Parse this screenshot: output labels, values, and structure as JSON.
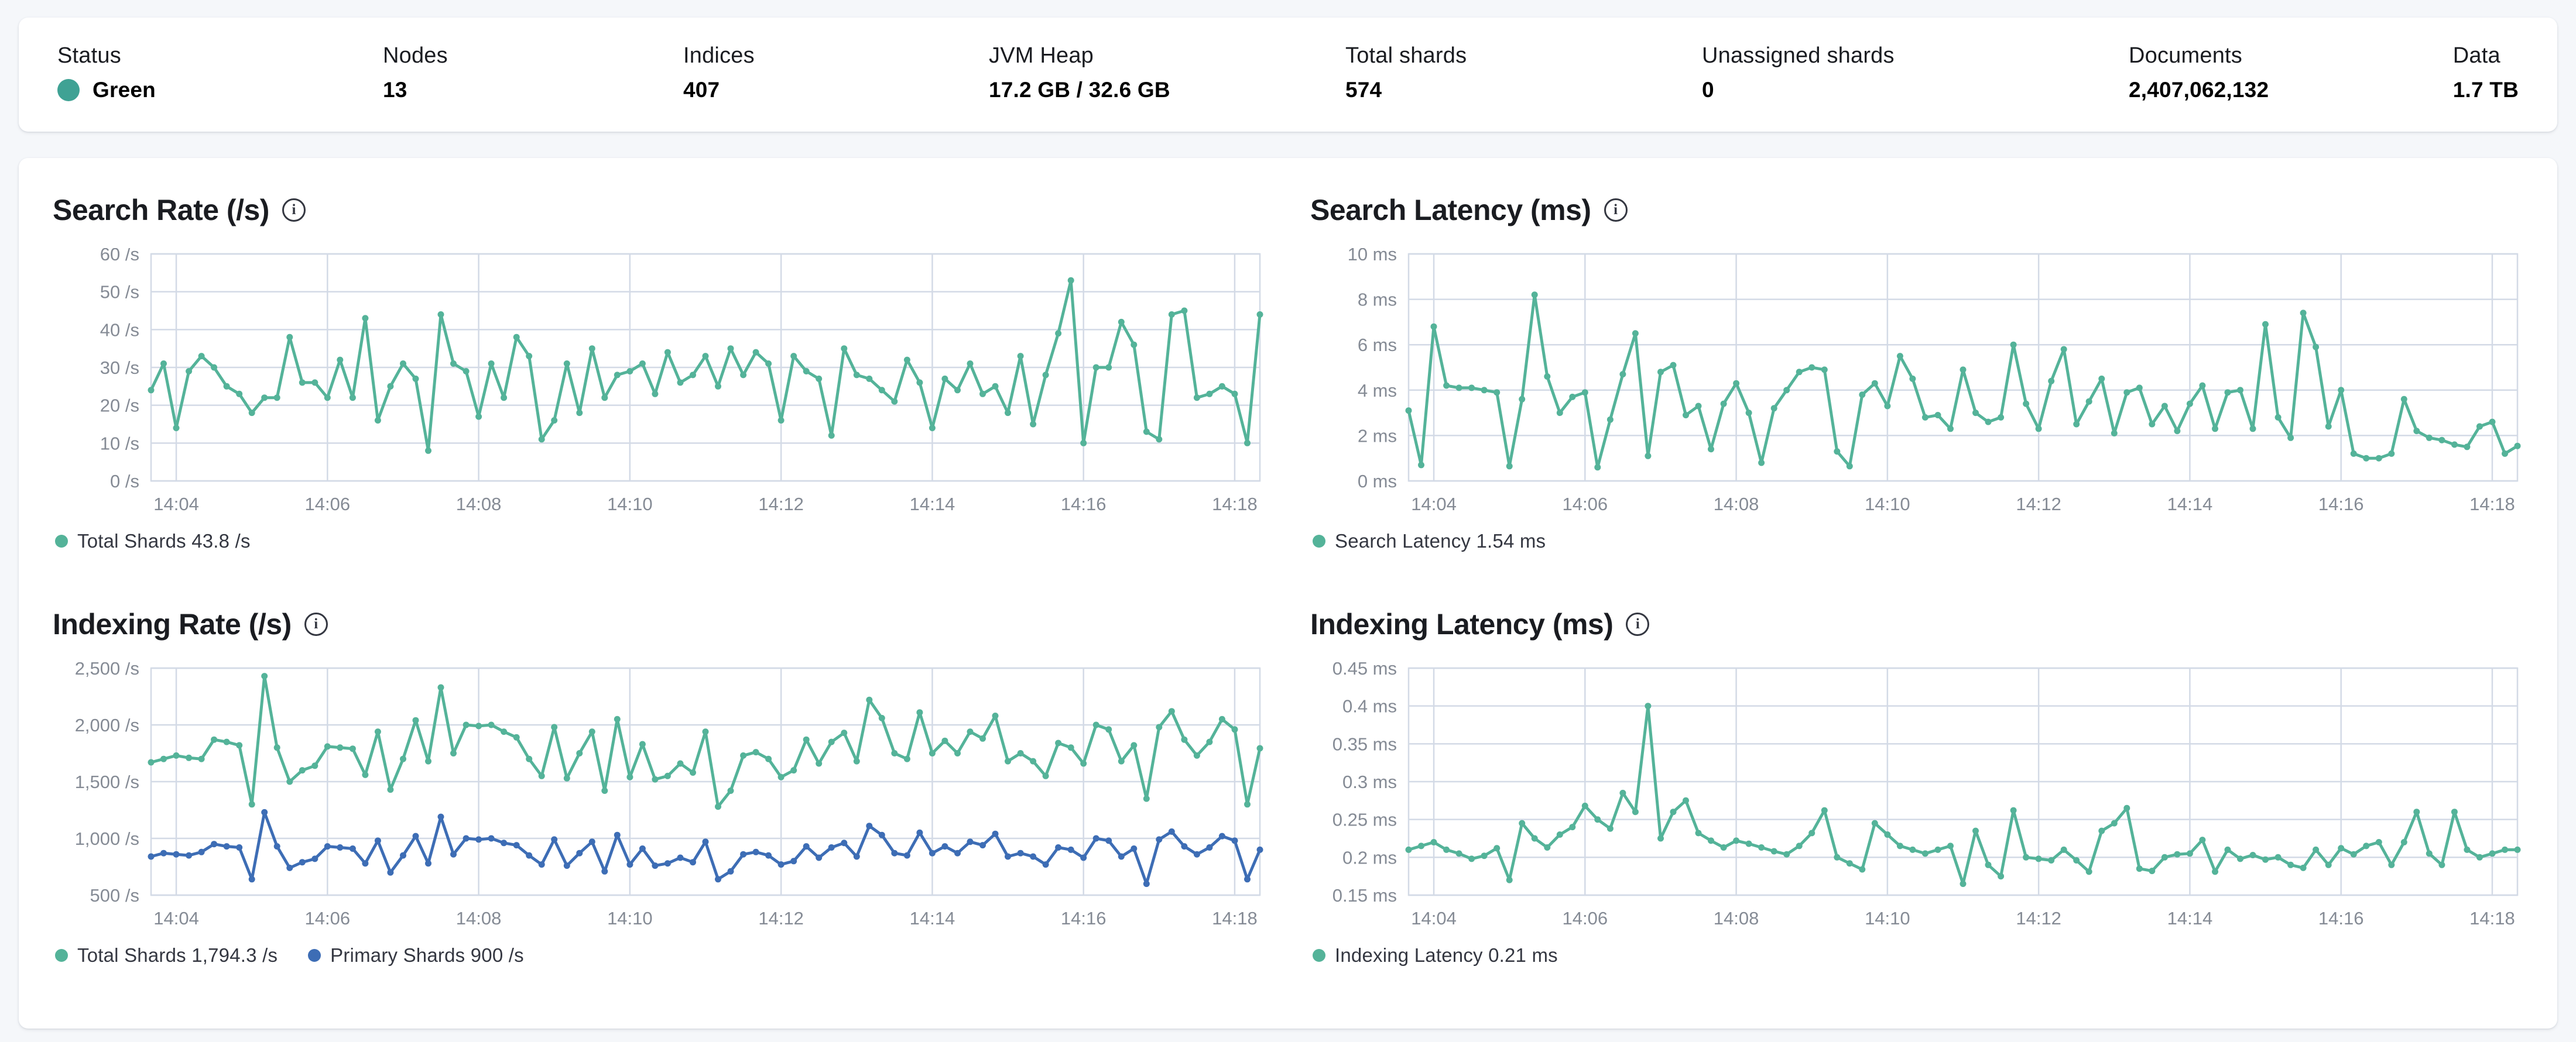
{
  "colors": {
    "page_bg": "#F5F7FA",
    "status_green": "#3FA294",
    "teal_series": "#54B399",
    "blue_series": "#3D6DB5",
    "grid": "#D3DAE6",
    "axis_text": "#858b95"
  },
  "status_bar": {
    "stats": [
      {
        "label": "Status",
        "value": "Green"
      },
      {
        "label": "Nodes",
        "value": "13"
      },
      {
        "label": "Indices",
        "value": "407"
      },
      {
        "label": "JVM Heap",
        "value": "17.2 GB / 32.6 GB"
      },
      {
        "label": "Total shards",
        "value": "574"
      },
      {
        "label": "Unassigned shards",
        "value": "0"
      },
      {
        "label": "Documents",
        "value": "2,407,062,132"
      },
      {
        "label": "Data",
        "value": "1.7 TB"
      }
    ]
  },
  "chart_data": [
    {
      "type": "line",
      "title": "Search Rate (/s)",
      "ylabel": "/s",
      "ylim": [
        0,
        60
      ],
      "ytick_values": [
        0,
        10,
        20,
        30,
        40,
        50,
        60
      ],
      "ytick_labels": [
        "0 /s",
        "10 /s",
        "20 /s",
        "30 /s",
        "40 /s",
        "50 /s",
        "60 /s"
      ],
      "x_tick_labels": [
        "14:04",
        "14:06",
        "14:08",
        "14:10",
        "14:12",
        "14:14",
        "14:16",
        "14:18"
      ],
      "x_tick_indices": [
        2,
        14,
        26,
        38,
        50,
        62,
        74,
        86
      ],
      "grid": true,
      "legend_position": "bottom",
      "series": [
        {
          "name": "Total Shards",
          "color": "#54B399",
          "current": "43.8 /s",
          "values": [
            24,
            31,
            14,
            29,
            33,
            30,
            25,
            23,
            18,
            22,
            22,
            38,
            26,
            26,
            22,
            32,
            22,
            43,
            16,
            25,
            31,
            27,
            8,
            44,
            31,
            29,
            17,
            31,
            22,
            38,
            33,
            11,
            16,
            31,
            18,
            35,
            22,
            28,
            29,
            31,
            23,
            34,
            26,
            28,
            33,
            25,
            35,
            28,
            34,
            31,
            16,
            33,
            29,
            27,
            12,
            35,
            28,
            27,
            24,
            21,
            32,
            26,
            14,
            27,
            24,
            31,
            23,
            25,
            18,
            33,
            15,
            28,
            39,
            53,
            10,
            30,
            30,
            42,
            36,
            13,
            11,
            44,
            45,
            22,
            23,
            25,
            23,
            10,
            44
          ]
        }
      ],
      "legend": [
        {
          "label": "Total Shards 43.8 /s"
        }
      ]
    },
    {
      "type": "line",
      "title": "Search Latency (ms)",
      "ylabel": "ms",
      "ylim": [
        0,
        10
      ],
      "ytick_values": [
        0,
        2,
        4,
        6,
        8,
        10
      ],
      "ytick_labels": [
        "0 ms",
        "2 ms",
        "4 ms",
        "6 ms",
        "8 ms",
        "10 ms"
      ],
      "x_tick_labels": [
        "14:04",
        "14:06",
        "14:08",
        "14:10",
        "14:12",
        "14:14",
        "14:16",
        "14:18"
      ],
      "x_tick_indices": [
        2,
        14,
        26,
        38,
        50,
        62,
        74,
        86
      ],
      "grid": true,
      "legend_position": "bottom",
      "series": [
        {
          "name": "Search Latency",
          "color": "#54B399",
          "current": "1.54 ms",
          "values": [
            3.1,
            0.7,
            6.8,
            4.2,
            4.1,
            4.1,
            4.0,
            3.9,
            0.65,
            3.6,
            8.2,
            4.6,
            3.0,
            3.7,
            3.9,
            0.6,
            2.7,
            4.7,
            6.5,
            1.1,
            4.8,
            5.1,
            2.9,
            3.3,
            1.4,
            3.4,
            4.3,
            3.0,
            0.8,
            3.2,
            4.0,
            4.8,
            5.0,
            4.9,
            1.3,
            0.65,
            3.8,
            4.3,
            3.3,
            5.5,
            4.5,
            2.8,
            2.9,
            2.3,
            4.9,
            3.0,
            2.6,
            2.8,
            6.0,
            3.4,
            2.3,
            4.4,
            5.8,
            2.5,
            3.5,
            4.5,
            2.1,
            3.9,
            4.1,
            2.5,
            3.3,
            2.2,
            3.4,
            4.2,
            2.3,
            3.9,
            4.0,
            2.3,
            6.9,
            2.8,
            1.9,
            7.4,
            5.9,
            2.4,
            4.0,
            1.2,
            1.0,
            1.0,
            1.2,
            3.6,
            2.2,
            1.9,
            1.8,
            1.6,
            1.5,
            2.4,
            2.6,
            1.2,
            1.54
          ]
        }
      ],
      "legend": [
        {
          "label": "Search Latency 1.54 ms"
        }
      ]
    },
    {
      "type": "line",
      "title": "Indexing Rate (/s)",
      "ylabel": "/s",
      "ylim": [
        500,
        2500
      ],
      "ytick_values": [
        500,
        1000,
        1500,
        2000,
        2500
      ],
      "ytick_labels": [
        "500 /s",
        "1,000 /s",
        "1,500 /s",
        "2,000 /s",
        "2,500 /s"
      ],
      "x_tick_labels": [
        "14:04",
        "14:06",
        "14:08",
        "14:10",
        "14:12",
        "14:14",
        "14:16",
        "14:18"
      ],
      "x_tick_indices": [
        2,
        14,
        26,
        38,
        50,
        62,
        74,
        86
      ],
      "grid": true,
      "legend_position": "bottom",
      "series": [
        {
          "name": "Total Shards",
          "color": "#54B399",
          "current": "1,794.3 /s",
          "values": [
            1670,
            1700,
            1730,
            1710,
            1700,
            1870,
            1850,
            1820,
            1300,
            2430,
            1800,
            1500,
            1600,
            1640,
            1810,
            1800,
            1790,
            1560,
            1940,
            1430,
            1700,
            2040,
            1680,
            2330,
            1750,
            2000,
            1990,
            2000,
            1940,
            1890,
            1700,
            1550,
            1980,
            1530,
            1750,
            1940,
            1420,
            2050,
            1540,
            1830,
            1520,
            1550,
            1660,
            1580,
            1940,
            1280,
            1420,
            1730,
            1760,
            1700,
            1540,
            1600,
            1870,
            1660,
            1850,
            1930,
            1680,
            2220,
            2060,
            1750,
            1700,
            2110,
            1750,
            1860,
            1750,
            1940,
            1880,
            2080,
            1680,
            1750,
            1680,
            1550,
            1840,
            1800,
            1660,
            2000,
            1960,
            1680,
            1820,
            1350,
            1980,
            2120,
            1870,
            1730,
            1850,
            2050,
            1960,
            1300,
            1794
          ]
        },
        {
          "name": "Primary Shards",
          "color": "#3D6DB5",
          "current": "900 /s",
          "values": [
            840,
            870,
            860,
            850,
            880,
            950,
            930,
            920,
            640,
            1230,
            930,
            740,
            790,
            820,
            930,
            920,
            910,
            780,
            980,
            700,
            850,
            1020,
            780,
            1190,
            860,
            1000,
            990,
            1000,
            960,
            940,
            850,
            770,
            990,
            760,
            870,
            970,
            710,
            1030,
            770,
            910,
            760,
            780,
            830,
            790,
            970,
            640,
            710,
            860,
            880,
            850,
            770,
            800,
            930,
            830,
            920,
            960,
            840,
            1110,
            1030,
            870,
            850,
            1050,
            870,
            930,
            870,
            970,
            940,
            1040,
            840,
            870,
            840,
            770,
            920,
            900,
            830,
            1000,
            980,
            840,
            910,
            600,
            990,
            1060,
            930,
            860,
            920,
            1020,
            980,
            640,
            900
          ]
        }
      ],
      "legend": [
        {
          "label": "Total Shards 1,794.3 /s"
        },
        {
          "label": "Primary Shards 900 /s"
        }
      ]
    },
    {
      "type": "line",
      "title": "Indexing Latency (ms)",
      "ylabel": "ms",
      "ylim": [
        0.15,
        0.45
      ],
      "ytick_values": [
        0.15,
        0.2,
        0.25,
        0.3,
        0.35,
        0.4,
        0.45
      ],
      "ytick_labels": [
        "0.15 ms",
        "0.2 ms",
        "0.25 ms",
        "0.3 ms",
        "0.35 ms",
        "0.4 ms",
        "0.45 ms"
      ],
      "x_tick_labels": [
        "14:04",
        "14:06",
        "14:08",
        "14:10",
        "14:12",
        "14:14",
        "14:16",
        "14:18"
      ],
      "x_tick_indices": [
        2,
        14,
        26,
        38,
        50,
        62,
        74,
        86
      ],
      "grid": true,
      "legend_position": "bottom",
      "series": [
        {
          "name": "Indexing Latency",
          "color": "#54B399",
          "current": "0.21 ms",
          "values": [
            0.21,
            0.215,
            0.22,
            0.21,
            0.205,
            0.198,
            0.202,
            0.212,
            0.17,
            0.245,
            0.225,
            0.213,
            0.23,
            0.24,
            0.268,
            0.25,
            0.238,
            0.285,
            0.26,
            0.4,
            0.225,
            0.26,
            0.275,
            0.232,
            0.222,
            0.213,
            0.222,
            0.218,
            0.213,
            0.208,
            0.204,
            0.215,
            0.232,
            0.262,
            0.2,
            0.192,
            0.184,
            0.245,
            0.23,
            0.215,
            0.21,
            0.205,
            0.21,
            0.215,
            0.165,
            0.235,
            0.19,
            0.175,
            0.262,
            0.2,
            0.198,
            0.196,
            0.21,
            0.196,
            0.181,
            0.235,
            0.245,
            0.265,
            0.185,
            0.182,
            0.2,
            0.204,
            0.205,
            0.223,
            0.181,
            0.21,
            0.198,
            0.203,
            0.197,
            0.2,
            0.19,
            0.186,
            0.21,
            0.19,
            0.212,
            0.204,
            0.215,
            0.22,
            0.19,
            0.22,
            0.26,
            0.205,
            0.19,
            0.26,
            0.21,
            0.2,
            0.205,
            0.21,
            0.21
          ]
        }
      ],
      "legend": [
        {
          "label": "Indexing Latency 0.21 ms"
        }
      ]
    }
  ]
}
